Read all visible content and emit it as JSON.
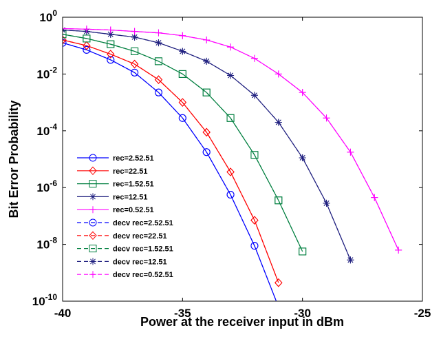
{
  "chart_data": {
    "type": "line",
    "title": "",
    "xlabel": "Power at the receiver input in dBm",
    "ylabel": "Bit Error Probability",
    "xlim": [
      -40,
      -25
    ],
    "ylim_exponent": [
      -10,
      0
    ],
    "yscale": "log",
    "grid": false,
    "legend_placement": "lower-left",
    "x_ticks": [
      "-40",
      "-35",
      "-30",
      "-25"
    ],
    "y_ticks": [
      {
        "base": "10",
        "exp": "0"
      },
      {
        "base": "10",
        "exp": "-2"
      },
      {
        "base": "10",
        "exp": "-4"
      },
      {
        "base": "10",
        "exp": "-6"
      },
      {
        "base": "10",
        "exp": "-8"
      },
      {
        "base": "10",
        "exp": "-10"
      }
    ],
    "series": [
      {
        "name": "rec=2.52.51",
        "color": "#0000ff",
        "marker": "circle",
        "style": "solid",
        "x": [
          -40,
          -39,
          -38,
          -37,
          -36,
          -35,
          -34,
          -33,
          -32,
          -31
        ],
        "log10_y": [
          -0.9,
          -1.15,
          -1.5,
          -1.95,
          -2.65,
          -3.55,
          -4.75,
          -6.25,
          -8.05,
          -10.2
        ]
      },
      {
        "name": "rec=22.51",
        "color": "#ff0000",
        "marker": "diamond",
        "style": "solid",
        "x": [
          -40,
          -39,
          -38,
          -37,
          -36,
          -35,
          -34,
          -33,
          -32,
          -31
        ],
        "log10_y": [
          -0.8,
          -1.0,
          -1.3,
          -1.65,
          -2.2,
          -3.0,
          -4.05,
          -5.45,
          -7.15,
          -9.35
        ]
      },
      {
        "name": "rec=1.52.51",
        "color": "#007f3f",
        "marker": "square",
        "style": "solid",
        "x": [
          -40,
          -39,
          -38,
          -37,
          -36,
          -35,
          -34,
          -33,
          -32,
          -31,
          -30
        ],
        "log10_y": [
          -0.6,
          -0.75,
          -0.95,
          -1.2,
          -1.55,
          -2.0,
          -2.65,
          -3.55,
          -4.85,
          -6.45,
          -8.25
        ]
      },
      {
        "name": "rec=12.51",
        "color": "#1f1f7f",
        "marker": "star",
        "style": "solid",
        "x": [
          -40,
          -39,
          -38,
          -37,
          -36,
          -35,
          -34,
          -33,
          -32,
          -31,
          -30,
          -29,
          -28
        ],
        "log10_y": [
          -0.45,
          -0.5,
          -0.6,
          -0.7,
          -0.9,
          -1.2,
          -1.55,
          -2.05,
          -2.75,
          -3.7,
          -4.95,
          -6.55,
          -8.55
        ]
      },
      {
        "name": "rec=0.52.51",
        "color": "#ff00ff",
        "marker": "plus",
        "style": "solid",
        "x": [
          -40,
          -39,
          -38,
          -37,
          -36,
          -35,
          -34,
          -33,
          -32,
          -31,
          -30,
          -29,
          -28,
          -27,
          -26
        ],
        "log10_y": [
          -0.4,
          -0.42,
          -0.45,
          -0.5,
          -0.55,
          -0.65,
          -0.8,
          -1.05,
          -1.45,
          -2.0,
          -2.65,
          -3.55,
          -4.75,
          -6.35,
          -8.2
        ]
      },
      {
        "name": "decv rec=2.52.51",
        "color": "#0000ff",
        "marker": "circle",
        "style": "dashed",
        "x": [
          -40,
          -39,
          -38,
          -37,
          -36,
          -35,
          -34,
          -33,
          -32,
          -31
        ],
        "log10_y": [
          -0.9,
          -1.15,
          -1.5,
          -1.95,
          -2.65,
          -3.55,
          -4.75,
          -6.25,
          -8.05,
          -10.2
        ]
      },
      {
        "name": "decv rec=22.51",
        "color": "#ff0000",
        "marker": "diamond",
        "style": "dashed",
        "x": [
          -40,
          -39,
          -38,
          -37,
          -36,
          -35,
          -34,
          -33,
          -32,
          -31
        ],
        "log10_y": [
          -0.8,
          -1.0,
          -1.3,
          -1.65,
          -2.2,
          -3.0,
          -4.05,
          -5.45,
          -7.15,
          -9.35
        ]
      },
      {
        "name": "decv rec=1.52.51",
        "color": "#007f3f",
        "marker": "square",
        "style": "dashed",
        "x": [
          -40,
          -39,
          -38,
          -37,
          -36,
          -35,
          -34,
          -33,
          -32,
          -31,
          -30
        ],
        "log10_y": [
          -0.6,
          -0.75,
          -0.95,
          -1.2,
          -1.55,
          -2.0,
          -2.65,
          -3.55,
          -4.85,
          -6.45,
          -8.25
        ]
      },
      {
        "name": "decv rec=12.51",
        "color": "#1f1f7f",
        "marker": "star",
        "style": "dashed",
        "x": [
          -40,
          -39,
          -38,
          -37,
          -36,
          -35,
          -34,
          -33,
          -32,
          -31,
          -30,
          -29,
          -28
        ],
        "log10_y": [
          -0.45,
          -0.5,
          -0.6,
          -0.7,
          -0.9,
          -1.2,
          -1.55,
          -2.05,
          -2.75,
          -3.7,
          -4.95,
          -6.55,
          -8.55
        ]
      },
      {
        "name": "decv rec=0.52.51",
        "color": "#ff00ff",
        "marker": "plus",
        "style": "dashed",
        "x": [
          -40,
          -39,
          -38,
          -37,
          -36,
          -35,
          -34,
          -33,
          -32,
          -31,
          -30,
          -29,
          -28,
          -27,
          -26
        ],
        "log10_y": [
          -0.4,
          -0.42,
          -0.45,
          -0.5,
          -0.55,
          -0.65,
          -0.8,
          -1.05,
          -1.45,
          -2.0,
          -2.65,
          -3.55,
          -4.75,
          -6.35,
          -8.2
        ]
      }
    ]
  }
}
